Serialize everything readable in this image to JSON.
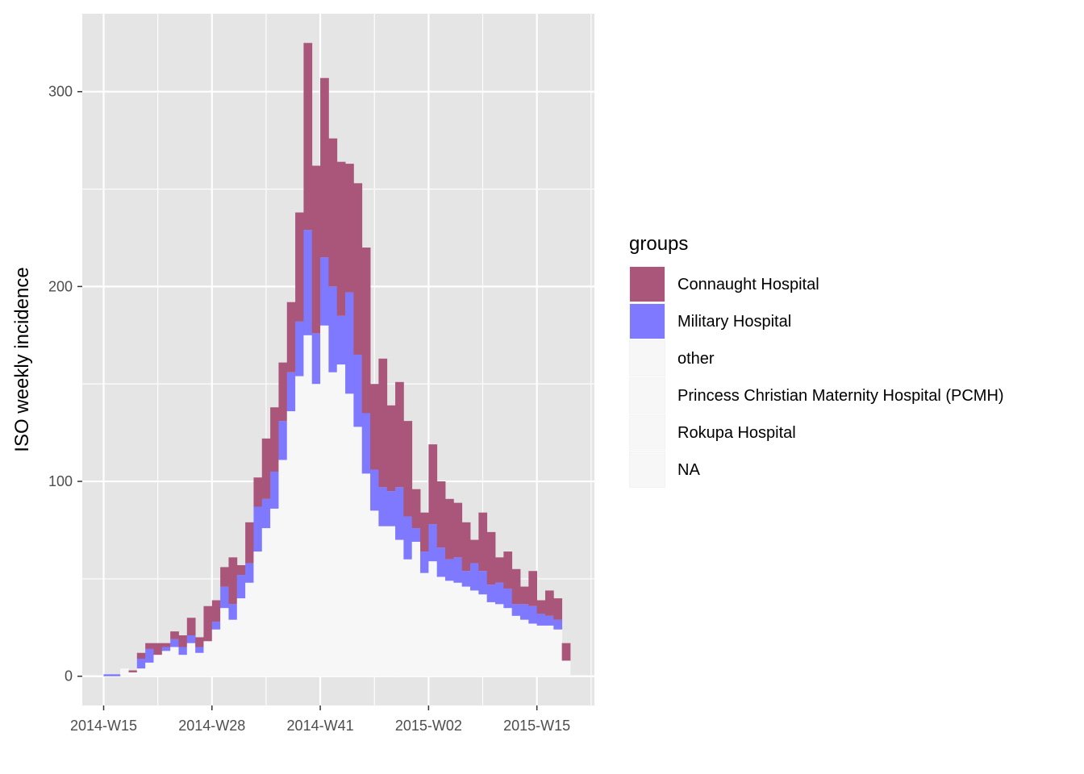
{
  "chart_data": {
    "type": "bar",
    "stacked": true,
    "ylabel": "ISO weekly incidence",
    "xlabel": "",
    "x_ticks": [
      "2014-W15",
      "2014-W28",
      "2014-W41",
      "2015-W02",
      "2015-W15"
    ],
    "y_ticks": [
      0,
      100,
      200,
      300
    ],
    "ylim": [
      -15,
      340
    ],
    "grid": true,
    "legend": {
      "title": "groups",
      "position": "right",
      "entries": [
        {
          "name": "Connaught Hospital",
          "color": "#A9567A"
        },
        {
          "name": "Military Hospital",
          "color": "#7F79FF"
        },
        {
          "name": "other",
          "color": "#F7F7F7"
        },
        {
          "name": "Princess Christian Maternity Hospital (PCMH)",
          "color": "#F7F7F7"
        },
        {
          "name": "Rokupa Hospital",
          "color": "#F7F7F7"
        },
        {
          "name": "NA",
          "color": "#F7F7F7"
        }
      ]
    },
    "weeks": [
      "2014-W15",
      "2014-W16",
      "2014-W17",
      "2014-W18",
      "2014-W19",
      "2014-W20",
      "2014-W21",
      "2014-W22",
      "2014-W23",
      "2014-W24",
      "2014-W25",
      "2014-W26",
      "2014-W27",
      "2014-W28",
      "2014-W29",
      "2014-W30",
      "2014-W31",
      "2014-W32",
      "2014-W33",
      "2014-W34",
      "2014-W35",
      "2014-W36",
      "2014-W37",
      "2014-W38",
      "2014-W39",
      "2014-W40",
      "2014-W41",
      "2014-W42",
      "2014-W43",
      "2014-W44",
      "2014-W45",
      "2014-W46",
      "2014-W47",
      "2014-W48",
      "2014-W49",
      "2014-W50",
      "2014-W51",
      "2014-W52",
      "2015-W01",
      "2015-W02",
      "2015-W03",
      "2015-W04",
      "2015-W05",
      "2015-W06",
      "2015-W07",
      "2015-W08",
      "2015-W09",
      "2015-W10",
      "2015-W11",
      "2015-W12",
      "2015-W13",
      "2015-W14",
      "2015-W15",
      "2015-W16",
      "2015-W17",
      "2015-W18",
      "2015-W19"
    ],
    "series": [
      {
        "name": "other / PCMH / Rokupa / NA",
        "values": [
          0,
          0,
          4,
          2,
          4,
          7,
          11,
          13,
          15,
          11,
          17,
          12,
          18,
          24,
          35,
          29,
          40,
          48,
          64,
          76,
          86,
          111,
          136,
          154,
          175,
          150,
          180,
          156,
          160,
          145,
          128,
          104,
          85,
          77,
          77,
          70,
          60,
          69,
          53,
          59,
          51,
          49,
          48,
          46,
          44,
          42,
          38,
          37,
          35,
          31,
          29,
          27,
          26,
          26,
          24,
          8,
          0
        ]
      },
      {
        "name": "Military Hospital",
        "values": [
          1,
          1,
          0,
          0,
          5,
          7,
          0,
          2,
          4,
          4,
          4,
          3,
          0,
          4,
          11,
          8,
          12,
          10,
          23,
          15,
          19,
          20,
          20,
          28,
          54,
          26,
          35,
          44,
          25,
          52,
          37,
          31,
          21,
          20,
          18,
          27,
          22,
          7,
          11,
          19,
          15,
          11,
          13,
          8,
          14,
          12,
          9,
          11,
          10,
          6,
          8,
          9,
          6,
          5,
          5,
          0,
          0
        ]
      },
      {
        "name": "Connaught Hospital",
        "values": [
          0,
          0,
          0,
          1,
          3,
          3,
          6,
          2,
          4,
          6,
          9,
          5,
          18,
          11,
          10,
          24,
          5,
          21,
          15,
          31,
          33,
          30,
          36,
          56,
          96,
          86,
          92,
          76,
          79,
          66,
          88,
          85,
          44,
          66,
          44,
          54,
          49,
          20,
          20,
          41,
          34,
          31,
          28,
          25,
          12,
          30,
          27,
          13,
          19,
          18,
          9,
          18,
          7,
          13,
          11,
          9,
          0
        ]
      }
    ]
  }
}
